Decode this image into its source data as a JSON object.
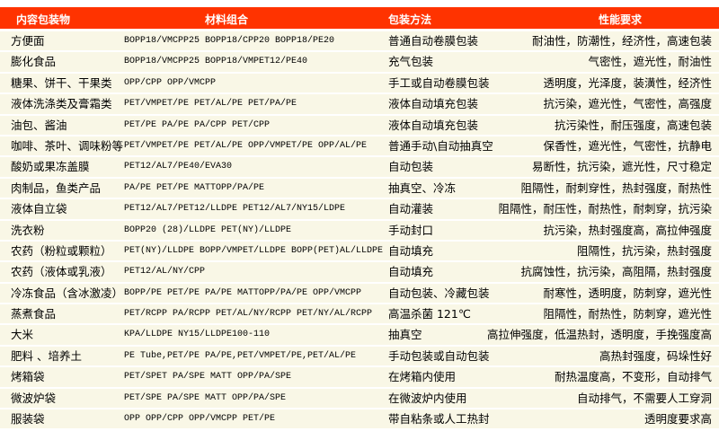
{
  "header": [
    "内容包装物",
    "材料组合",
    "包装方法",
    "性能要求"
  ],
  "accent_color": "#ff3300",
  "rows": [
    [
      "方便面",
      "BOPP18/VMCPP25  BOPP18/CPP20  BOPP18/PE20",
      "普通自动卷膜包装",
      "耐油性，防潮性，经济性，高速包装"
    ],
    [
      "膨化食品",
      "BOPP18/VMCPP25  BOPP18/VMPET12/PE40",
      "充气包装",
      "气密性，遮光性，耐油性"
    ],
    [
      "糖果、饼干、干果类",
      "OPP/CPP OPP/VMCPP",
      "手工或自动卷膜包装",
      "透明度，光泽度，装潢性，经济性"
    ],
    [
      "液体洗涤类及膏霜类",
      "PET/VMPET/PE PET/AL/PE  PET/PA/PE",
      "液体自动填充包装",
      "抗污染，遮光性，气密性，高强度"
    ],
    [
      "油包、酱油",
      "PET/PE  PA/PE PA/CPP PET/CPP",
      "液体自动填充包装",
      "抗污染性，耐压强度，高速包装"
    ],
    [
      "咖啡、茶叶、调味粉等",
      "PET/VMPET/PE PET/AL/PE OPP/VMPET/PE OPP/AL/PE",
      "普通手动\\自动抽真空",
      "保香性，遮光性，气密性，抗静电"
    ],
    [
      "酸奶或果冻盖膜",
      "PET12/AL7/PE40/EVA30",
      "自动包装",
      "易断性，抗污染，遮光性，尺寸稳定"
    ],
    [
      "肉制品，鱼类产品",
      "PA/PE PET/PE MATTOPP/PA/PE",
      "抽真空、冷冻",
      "阻隔性，耐刺穿性，热封强度，耐热性"
    ],
    [
      "液体自立袋",
      "PET12/AL7/PET12/LLDPE PET12/AL7/NY15/LDPE",
      "自动灌装",
      "阻隔性，耐压性，耐热性，耐刺穿，抗污染"
    ],
    [
      "洗衣粉",
      "BOPP20 (28)/LLDPE PET(NY)/LLDPE",
      "手动封口",
      "抗污染，热封强度高，高拉伸强度"
    ],
    [
      "农药（粉粒或颗粒）",
      "PET(NY)/LLDPE BOPP/VMPET/LLDPE BOPP(PET)AL/LLDPE",
      "自动填充",
      "阻隔性，抗污染，热封强度"
    ],
    [
      "农药（液体或乳液）",
      "PET12/AL/NY/CPP",
      "自动填充",
      "抗腐蚀性，抗污染，高阻隔，热封强度"
    ],
    [
      "冷冻食品（含冰激凌）",
      "BOPP/PE PET/PE PA/PE MATTOPP/PA/PE OPP/VMCPP",
      "自动包装、冷藏包装",
      "耐寒性，透明度，防刺穿，遮光性"
    ],
    [
      "蒸煮食品",
      "PET/RCPP PA/RCPP PET/AL/NY/RCPP PET/NY/AL/RCPP",
      "高温杀菌 121℃",
      "阻隔性，耐热性，防刺穿，遮光性"
    ],
    [
      "大米",
      "KPA/LLDPE NY15/LLDPE100-110",
      "抽真空",
      "高拉伸强度，低温热封，透明度，手挽强度高"
    ],
    [
      "肥料 、培养土",
      "PE Tube,PET/PE  PA/PE,PET/VMPET/PE,PET/AL/PE",
      "手动包装或自动包装",
      "高热封强度，码垛性好"
    ],
    [
      "烤箱袋",
      "PET/SPET PA/SPE MATT OPP/PA/SPE",
      "在烤箱内使用",
      "耐热温度高，不变形，自动排气"
    ],
    [
      "微波炉袋",
      "PET/SPE PA/SPE MATT OPP/PA/SPE",
      "在微波炉内使用",
      "自动排气，不需要人工穿洞"
    ],
    [
      "服装袋",
      "OPP  OPP/CPP OPP/VMCPP PET/PE",
      "带自粘条或人工热封",
      "透明度要求高"
    ]
  ]
}
